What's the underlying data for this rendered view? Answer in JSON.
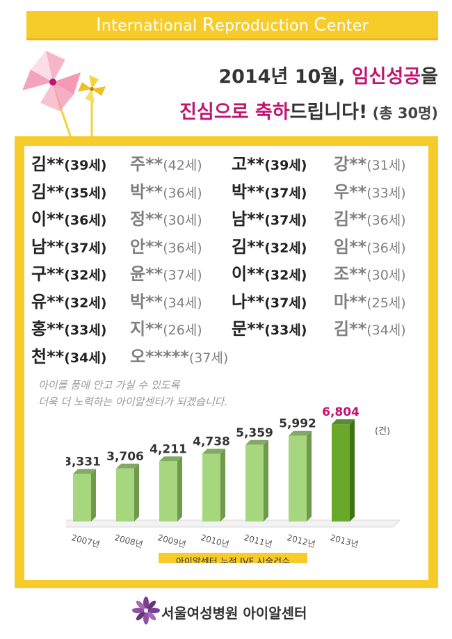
{
  "banner": {
    "parts": [
      {
        "cap": "I",
        "rest": "nternational "
      },
      {
        "cap": "R",
        "rest": "eproduction "
      },
      {
        "cap": "C",
        "rest": "enter"
      }
    ]
  },
  "headline": {
    "line1_a": "2014년 10월, ",
    "line1_b": "임신성공",
    "line1_c": "을",
    "line2_a": "진심으로 축하",
    "line2_b": "드립니다!",
    "line2_c": " (총 30명)"
  },
  "names": [
    [
      "김**",
      "(39세)"
    ],
    [
      "주**",
      "(42세)"
    ],
    [
      "고**",
      "(39세)"
    ],
    [
      "강**",
      "(31세)"
    ],
    [
      "김**",
      "(35세)"
    ],
    [
      "박**",
      "(36세)"
    ],
    [
      "박**",
      "(37세)"
    ],
    [
      "우**",
      "(33세)"
    ],
    [
      "이**",
      "(36세)"
    ],
    [
      "정**",
      "(30세)"
    ],
    [
      "남**",
      "(37세)"
    ],
    [
      "김**",
      "(36세)"
    ],
    [
      "남**",
      "(37세)"
    ],
    [
      "안**",
      "(36세)"
    ],
    [
      "김**",
      "(32세)"
    ],
    [
      "임**",
      "(36세)"
    ],
    [
      "구**",
      "(32세)"
    ],
    [
      "윤**",
      "(37세)"
    ],
    [
      "이**",
      "(32세)"
    ],
    [
      "조**",
      "(30세)"
    ],
    [
      "유**",
      "(32세)"
    ],
    [
      "박**",
      "(34세)"
    ],
    [
      "나**",
      "(37세)"
    ],
    [
      "마**",
      "(25세)"
    ],
    [
      "홍**",
      "(33세)"
    ],
    [
      "지**",
      "(26세)"
    ],
    [
      "문**",
      "(33세)"
    ],
    [
      "김**",
      "(34세)"
    ],
    [
      "천**",
      "(34세)"
    ],
    [
      "오*****",
      "(37세)"
    ]
  ],
  "caption": {
    "line1": "아이를 품에 안고 가실 수 있도록",
    "line2": "더욱 더 노력하는 아이알센터가 되겠습니다."
  },
  "chart_data": {
    "type": "bar",
    "categories": [
      "2007년",
      "2008년",
      "2009년",
      "2010년",
      "2011년",
      "2012년",
      "2013년"
    ],
    "values": [
      3331,
      3706,
      4211,
      4738,
      5359,
      5992,
      6804
    ],
    "value_labels": [
      "3,331",
      "3,706",
      "4,211",
      "4,738",
      "5,359",
      "5,992",
      "6,804"
    ],
    "unit_label": "(건)",
    "xlabel": "아이알센터 누적 IVF 시술건수",
    "ylim": [
      0,
      7000
    ],
    "colors": {
      "bar": "#a6d67e",
      "bar_side": "#6f9a4b",
      "highlight": "#6aa82a",
      "highlight_side": "#3f7316",
      "highlight_label": "#c2136f"
    }
  },
  "footer": {
    "text": "서울여성병원 아이알센터"
  },
  "colors": {
    "accent_yellow": "#f7cc2a",
    "accent_pink": "#c2136f"
  }
}
